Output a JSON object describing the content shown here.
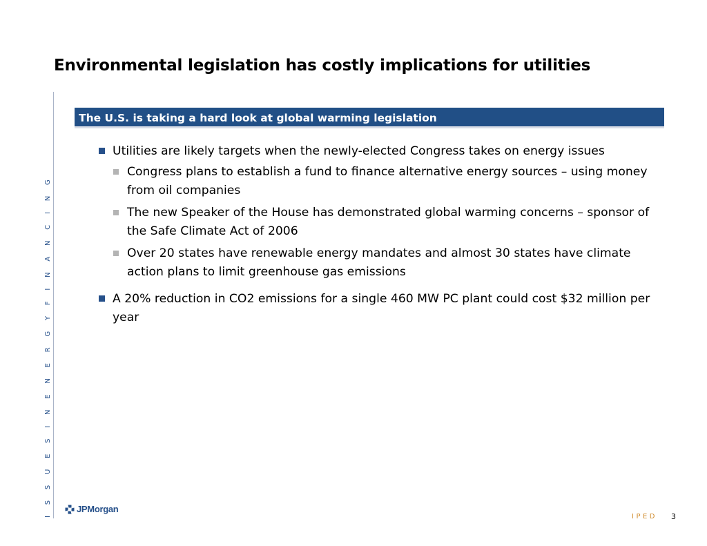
{
  "slide": {
    "title": "Environmental legislation has costly implications for utilities",
    "side_text": "I S S U E S   I N   E N E R G Y   F I N A N C I N G",
    "header_bar": "The U.S. is taking a hard look at global warming legislation",
    "bullets": [
      {
        "text": "Utilities are likely targets when the newly-elected Congress takes on energy issues",
        "sub": [
          "Congress plans to establish a fund to finance alternative energy sources – using money from oil companies",
          "The new Speaker of the House has demonstrated global warming concerns – sponsor of  the Safe Climate Act of 2006",
          "Over 20 states have renewable energy mandates and almost 30 states have climate action plans to limit greenhouse gas emissions"
        ]
      },
      {
        "text": "A 20% reduction in CO2 emissions for a single 460 MW PC plant could cost $32 million per year"
      }
    ]
  },
  "footer": {
    "logo_text": "JPMorgan",
    "logo_icon": "octagon-logo-icon",
    "tag": "IPED",
    "page_number": "3"
  },
  "colors": {
    "brand_blue": "#214f86",
    "bullet_blue": "#26508a",
    "sub_bullet_gray": "#b4b4b4",
    "tag_orange": "#d08a2a"
  }
}
